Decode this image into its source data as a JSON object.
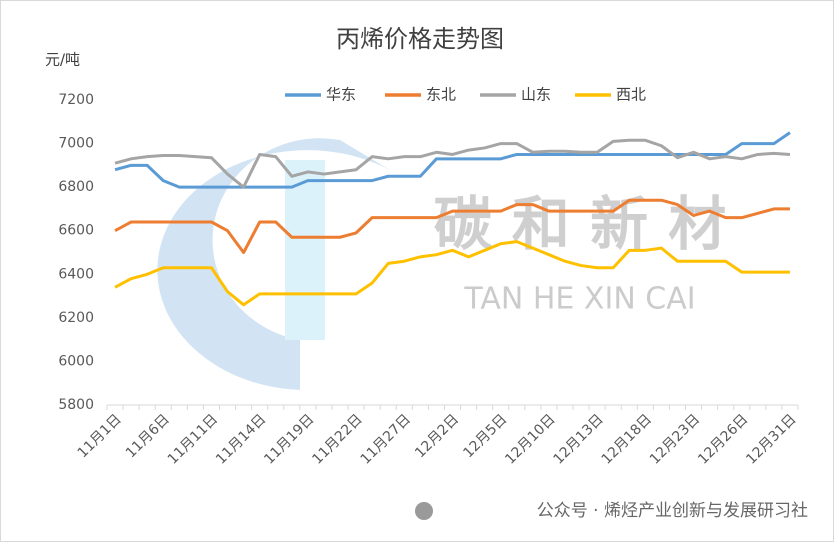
{
  "chart_data": {
    "type": "line",
    "title": "丙烯价格走势图",
    "y_label": "元/吨",
    "categories": [
      "11月1日",
      null,
      null,
      "11月6日",
      null,
      null,
      "11月11日",
      null,
      null,
      "11月14日",
      null,
      null,
      "11月19日",
      null,
      null,
      "11月22日",
      null,
      null,
      "11月27日",
      null,
      null,
      "12月2日",
      null,
      null,
      "12月5日",
      null,
      null,
      "12月10日",
      null,
      null,
      "12月13日",
      null,
      null,
      "12月18日",
      null,
      null,
      "12月23日",
      null,
      null,
      "12月26日",
      null,
      null,
      "12月31日"
    ],
    "series": [
      {
        "name": "华东",
        "color": "#5b9bd5",
        "values": [
          6880,
          6900,
          6900,
          6830,
          6800,
          6800,
          6800,
          6800,
          6800,
          6800,
          6800,
          6800,
          6830,
          6830,
          6830,
          6830,
          6830,
          6850,
          6850,
          6850,
          6930,
          6930,
          6930,
          6930,
          6930,
          6950,
          6950,
          6950,
          6950,
          6950,
          6950,
          6950,
          6950,
          6950,
          6950,
          6950,
          6950,
          6950,
          6950,
          7000,
          7000,
          7000,
          7050
        ]
      },
      {
        "name": "东北",
        "color": "#ed7d31",
        "values": [
          6600,
          6640,
          6640,
          6640,
          6640,
          6640,
          6640,
          6600,
          6500,
          6640,
          6640,
          6570,
          6570,
          6570,
          6570,
          6590,
          6660,
          6660,
          6660,
          6660,
          6660,
          6690,
          6690,
          6690,
          6690,
          6720,
          6720,
          6690,
          6690,
          6690,
          6690,
          6690,
          6740,
          6740,
          6740,
          6720,
          6670,
          6690,
          6660,
          6660,
          6680,
          6700,
          6700
        ]
      },
      {
        "name": "山东",
        "color": "#a5a5a5",
        "values": [
          6910,
          6930,
          6940,
          6945,
          6945,
          6940,
          6935,
          6860,
          6800,
          6950,
          6940,
          6850,
          6870,
          6860,
          6870,
          6880,
          6940,
          6930,
          6940,
          6940,
          6960,
          6950,
          6970,
          6980,
          7000,
          7000,
          6960,
          6965,
          6965,
          6960,
          6960,
          7010,
          7015,
          7015,
          6990,
          6935,
          6960,
          6930,
          6940,
          6930,
          6950,
          6955,
          6950
        ]
      },
      {
        "name": "西北",
        "color": "#ffc000",
        "values": [
          6340,
          6380,
          6400,
          6430,
          6430,
          6430,
          6430,
          6320,
          6260,
          6310,
          6310,
          6310,
          6310,
          6310,
          6310,
          6310,
          6360,
          6450,
          6460,
          6480,
          6490,
          6510,
          6480,
          6510,
          6540,
          6550,
          6520,
          6490,
          6460,
          6440,
          6430,
          6430,
          6510,
          6510,
          6520,
          6460,
          6460,
          6460,
          6460,
          6410,
          6410,
          6410,
          6410
        ]
      }
    ],
    "ylim": [
      5800,
      7200
    ],
    "yticks": [
      5800,
      6000,
      6200,
      6400,
      6600,
      6800,
      7000,
      7200
    ],
    "legend": "top",
    "annotations": [
      "碳 和 新 材",
      "TAN  HE  XIN  CAI",
      "公众号 · 烯烃产业创新与发展研习社"
    ]
  }
}
